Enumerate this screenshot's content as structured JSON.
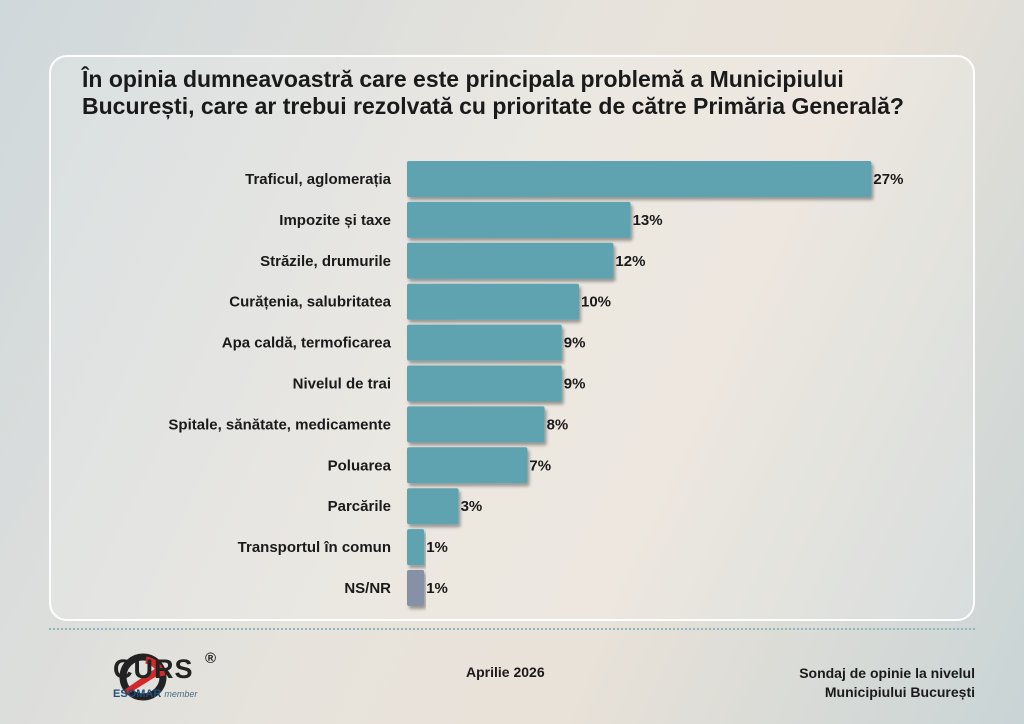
{
  "title": "În opinia dumneavoastră care este principala problemă a Municipiului București, care ar trebui rezolvată cu prioritate de către Primăria Generală?",
  "chart_data": {
    "type": "bar",
    "orientation": "horizontal",
    "title": "În opinia dumneavoastră care este principala problemă a Municipiului București, care ar trebui rezolvată cu prioritate de către Primăria Generală?",
    "categories": [
      "Traficul, aglomerația",
      "Impozite și taxe",
      "Străzile, drumurile",
      "Curățenia, salubritatea",
      "Apa caldă, termoficarea",
      "Nivelul de trai",
      "Spitale, sănătate, medicamente",
      "Poluarea",
      "Parcările",
      "Transportul în comun",
      "NS/NR"
    ],
    "values": [
      27,
      13,
      12,
      10,
      9,
      9,
      8,
      7,
      3,
      1,
      1
    ],
    "value_labels": [
      "27%",
      "13%",
      "12%",
      "10%",
      "9%",
      "9%",
      "8%",
      "7%",
      "3%",
      "1%",
      "1%"
    ],
    "unit": "%",
    "colors": {
      "bar": "#5ea2b0",
      "bar_nsnr": "#8791a6"
    },
    "grid": false,
    "legend": "none"
  },
  "footer": {
    "logo_text": "CURS",
    "logo_reg": "®",
    "logo_sub": "ESOMAR",
    "logo_member": "member",
    "date": "Aprilie 2026",
    "source": "Sondaj de opinie la nivelul Municipiului București"
  }
}
